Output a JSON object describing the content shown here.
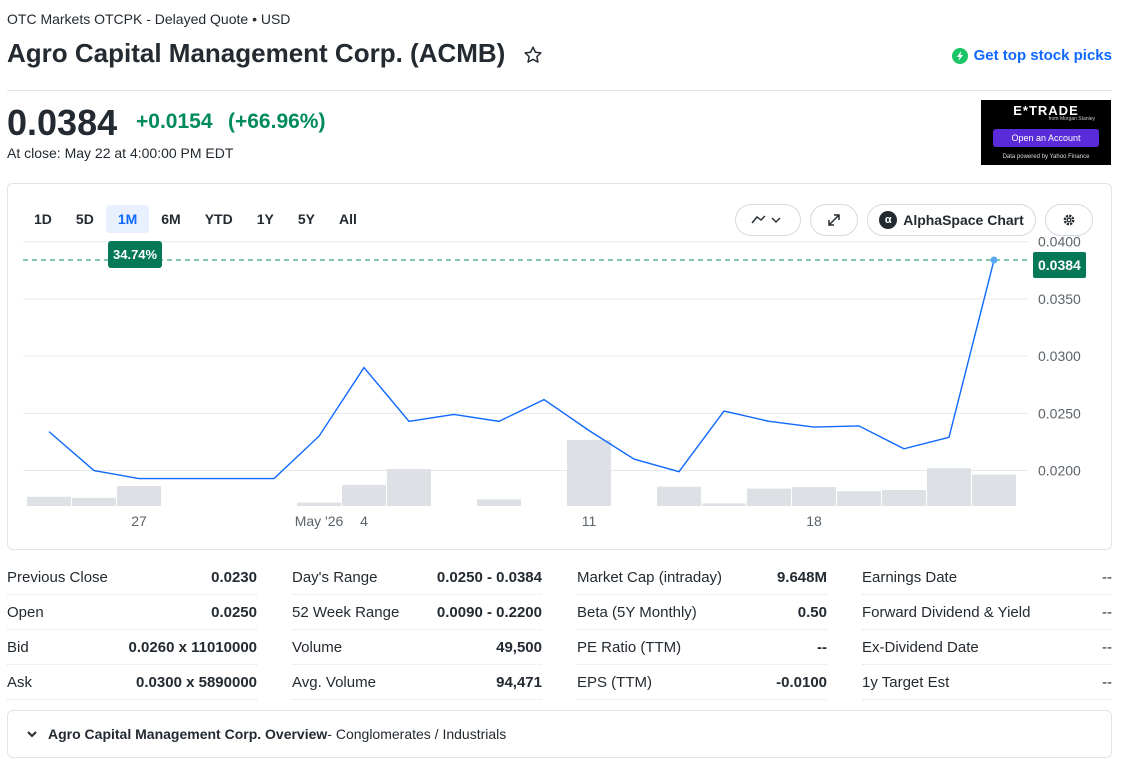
{
  "header": {
    "exchange": "OTC Markets OTCPK - Delayed Quote • USD",
    "title": "Agro Capital Management Corp. (ACMB)",
    "picks_label": "Get top stock picks"
  },
  "quote": {
    "price": "0.0384",
    "change": "+0.0154",
    "change_pct": "(+66.96%)",
    "close_time": "At close: May 22 at 4:00:00 PM EDT"
  },
  "ad": {
    "logo": "E*TRADE",
    "sub": "from Morgan Stanley",
    "button": "Open an Account",
    "powered": "Data powered by Yahoo Finance"
  },
  "chart_controls": {
    "ranges": [
      "1D",
      "5D",
      "1M",
      "6M",
      "YTD",
      "1Y",
      "5Y",
      "All"
    ],
    "active_range": "1M",
    "alphaspace_label": "AlphaSpace Chart",
    "pct_badge": "34.74%",
    "last_badge": "0.0384"
  },
  "chart_data": {
    "type": "line",
    "y_ticks": [
      "0.0400",
      "0.0350",
      "0.0300",
      "0.0250",
      "0.0200"
    ],
    "ylim": [
      0.0169,
      0.0405
    ],
    "x_ticks": [
      {
        "label": "27",
        "index": 2
      },
      {
        "label": "May '26",
        "index": 6
      },
      {
        "label": "4",
        "index": 7
      },
      {
        "label": "11",
        "index": 12
      },
      {
        "label": "18",
        "index": 17
      }
    ],
    "values": [
      0.0234,
      0.02,
      0.0193,
      0.0193,
      0.0193,
      0.0193,
      0.023,
      0.029,
      0.0243,
      0.0249,
      0.0243,
      0.0262,
      0.0235,
      0.021,
      0.0199,
      0.0252,
      0.0243,
      0.0238,
      0.0239,
      0.0219,
      0.0229,
      0.0384
    ],
    "volume": [
      0.25,
      0.22,
      0.54,
      0.0,
      0.0,
      0.0,
      0.09,
      0.57,
      1.0,
      0.0,
      0.18,
      0.0,
      1.78,
      0.0,
      0.52,
      0.07,
      0.47,
      0.51,
      0.4,
      0.43,
      1.02,
      0.85
    ],
    "reference_line": 0.0384,
    "colors": {
      "line": "#0f69ff",
      "ref": "#3ea77a",
      "volume": "#dde1e6"
    }
  },
  "stats": {
    "col1": [
      {
        "label": "Previous Close",
        "value": "0.0230"
      },
      {
        "label": "Open",
        "value": "0.0250"
      },
      {
        "label": "Bid",
        "value": "0.0260 x 11010000"
      },
      {
        "label": "Ask",
        "value": "0.0300 x 5890000"
      }
    ],
    "col2": [
      {
        "label": "Day's Range",
        "value": "0.0250 - 0.0384"
      },
      {
        "label": "52 Week Range",
        "value": "0.0090 - 0.2200"
      },
      {
        "label": "Volume",
        "value": "49,500"
      },
      {
        "label": "Avg. Volume",
        "value": "94,471"
      }
    ],
    "col3": [
      {
        "label": "Market Cap (intraday)",
        "value": "9.648M"
      },
      {
        "label": "Beta (5Y Monthly)",
        "value": "0.50"
      },
      {
        "label": "PE Ratio (TTM)",
        "value": "--"
      },
      {
        "label": "EPS (TTM)",
        "value": "-0.0100"
      }
    ],
    "col4": [
      {
        "label": "Earnings Date",
        "value": "--"
      },
      {
        "label": "Forward Dividend & Yield",
        "value": "--"
      },
      {
        "label": "Ex-Dividend Date",
        "value": "--"
      },
      {
        "label": "1y Target Est",
        "value": "--"
      }
    ]
  },
  "overview": {
    "title": "Agro Capital Management Corp. Overview",
    "sector": " - Conglomerates / Industrials"
  }
}
